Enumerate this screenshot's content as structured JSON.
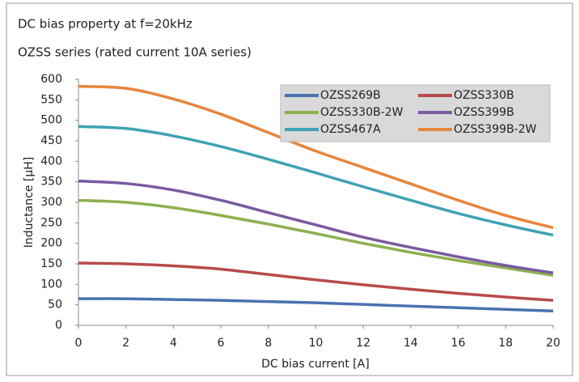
{
  "chart_data": {
    "type": "line",
    "title": "DC bias property at f=20kHz",
    "subtitle": "OZSS series (rated current 10A series)",
    "x_label": "DC bias current [A]",
    "y_label": "Inductance [μH]",
    "x": [
      0,
      2,
      4,
      6,
      8,
      10,
      12,
      14,
      16,
      18,
      20
    ],
    "xlim": [
      0,
      20
    ],
    "xticks": [
      0,
      2,
      4,
      6,
      8,
      10,
      12,
      14,
      16,
      18,
      20
    ],
    "ylim": [
      0,
      600
    ],
    "yticks": [
      0,
      50,
      100,
      150,
      200,
      250,
      300,
      350,
      400,
      450,
      500,
      550,
      600
    ],
    "grid": false,
    "legend": "top-right",
    "series": [
      {
        "name": "OZSS269B",
        "color": "#4a72b0",
        "values": [
          65,
          65,
          63,
          61,
          58,
          55,
          51,
          47,
          43,
          39,
          35
        ]
      },
      {
        "name": "OZSS330B",
        "color": "#b84b4b",
        "values": [
          152,
          150,
          145,
          137,
          124,
          111,
          99,
          88,
          78,
          69,
          61
        ]
      },
      {
        "name": "OZSS330B-2W",
        "color": "#8db04f",
        "values": [
          305,
          300,
          287,
          268,
          247,
          224,
          200,
          178,
          158,
          140,
          122
        ]
      },
      {
        "name": "OZSS399B",
        "color": "#7a5aa0",
        "values": [
          352,
          346,
          330,
          305,
          275,
          245,
          215,
          190,
          167,
          146,
          128
        ]
      },
      {
        "name": "OZSS467A",
        "color": "#3fa2b5",
        "values": [
          485,
          480,
          462,
          436,
          405,
          372,
          338,
          305,
          273,
          245,
          220
        ]
      },
      {
        "name": "OZSS399B-2W",
        "color": "#e8853d",
        "values": [
          583,
          578,
          552,
          515,
          470,
          425,
          385,
          345,
          305,
          268,
          238
        ]
      }
    ]
  }
}
